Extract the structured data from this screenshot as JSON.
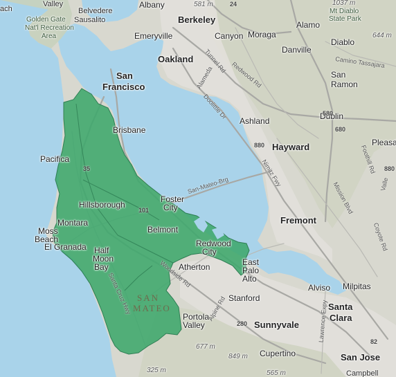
{
  "map": {
    "colors": {
      "water": "#a9d3ea",
      "land": "#d8d8cf",
      "district_fill": "#3ea76c",
      "district_stroke": "#2e7d53",
      "road": "#b9b9b4"
    },
    "district": {
      "name": "SAN MATEO",
      "line1": "SAN",
      "line2": "MATEO"
    },
    "cities": [
      {
        "name": "Oakland",
        "size": "l"
      },
      {
        "name": "San Francisco",
        "line1": "San",
        "line2": "Francisco",
        "size": "l"
      },
      {
        "name": "Berkeley",
        "size": "l"
      },
      {
        "name": "Hayward",
        "size": "l"
      },
      {
        "name": "Fremont",
        "size": "l"
      },
      {
        "name": "Sunnyvale",
        "size": "l"
      },
      {
        "name": "Santa Clara",
        "line1": "Santa",
        "line2": "Clara",
        "size": "l"
      },
      {
        "name": "San Jose",
        "size": "l"
      },
      {
        "name": "Emeryville",
        "size": "m"
      },
      {
        "name": "Albany",
        "size": "m"
      },
      {
        "name": "Alamo",
        "size": "m"
      },
      {
        "name": "Canyon",
        "size": "m"
      },
      {
        "name": "Moraga",
        "size": "m"
      },
      {
        "name": "Danville",
        "size": "m"
      },
      {
        "name": "Diablo",
        "size": "m"
      },
      {
        "name": "San Ramon",
        "line1": "San",
        "line2": "Ramon",
        "size": "m"
      },
      {
        "name": "Dublin",
        "size": "m"
      },
      {
        "name": "Ashland",
        "size": "m"
      },
      {
        "name": "Pleasa",
        "size": "m"
      },
      {
        "name": "Brisbane",
        "size": "m"
      },
      {
        "name": "Pacifica",
        "size": "m"
      },
      {
        "name": "Hillsborough",
        "size": "m"
      },
      {
        "name": "Foster City",
        "line1": "Foster",
        "line2": "City",
        "size": "m"
      },
      {
        "name": "Montara",
        "size": "m"
      },
      {
        "name": "Moss Beach",
        "line1": "Moss",
        "line2": "Beach",
        "size": "m"
      },
      {
        "name": "El Granada",
        "size": "m"
      },
      {
        "name": "Belmont",
        "size": "m"
      },
      {
        "name": "Redwood City",
        "line1": "Redwood",
        "line2": "City",
        "size": "m"
      },
      {
        "name": "Half Moon Bay",
        "line1": "Half",
        "line2": "Moon",
        "line3": "Bay",
        "size": "m"
      },
      {
        "name": "Atherton",
        "size": "m"
      },
      {
        "name": "East Palo Alto",
        "line1": "East",
        "line2": "Palo",
        "line3": "Alto",
        "size": "m"
      },
      {
        "name": "Stanford",
        "size": "m"
      },
      {
        "name": "Alviso",
        "size": "m"
      },
      {
        "name": "Milpitas",
        "size": "m"
      },
      {
        "name": "Portola Valley",
        "line1": "Portola",
        "line2": "Valley",
        "size": "m"
      },
      {
        "name": "Cupertino",
        "size": "m"
      },
      {
        "name": "Campbell",
        "size": "s"
      },
      {
        "name": "Belvedere",
        "size": "s"
      },
      {
        "name": "Sausalito",
        "size": "s"
      },
      {
        "name": "Valley",
        "size": "s"
      },
      {
        "name": "ach",
        "size": "s"
      }
    ],
    "parks": [
      {
        "name": "Golden Gate National Recreation Area",
        "line1": "Golden Gate",
        "line2": "Nat'l Recreation",
        "line3": "Area"
      },
      {
        "name": "Mt Diablo State Park",
        "line1": "Mt Diablo",
        "line2": "State Park"
      }
    ],
    "elevations": [
      "581 m",
      "1037 m",
      "644 m",
      "677 m",
      "849 m",
      "325 m",
      "565 m"
    ],
    "roads": [
      "San-Mateo-Brg",
      "Redwood Rd",
      "Doolittle Dr",
      "Foothill Rd",
      "Mission Blvd",
      "Nimitz Fwy",
      "Camino Tassajara",
      "Alameda",
      "Lawrence Expy",
      "Alpine Rd",
      "Tunnel Rd",
      "Woodside Rd",
      "Valle",
      "Santa Cruz Hwy",
      "Coyote Rd"
    ],
    "highways": [
      "24",
      "880",
      "880",
      "680",
      "580",
      "35",
      "101",
      "280",
      "82"
    ]
  }
}
